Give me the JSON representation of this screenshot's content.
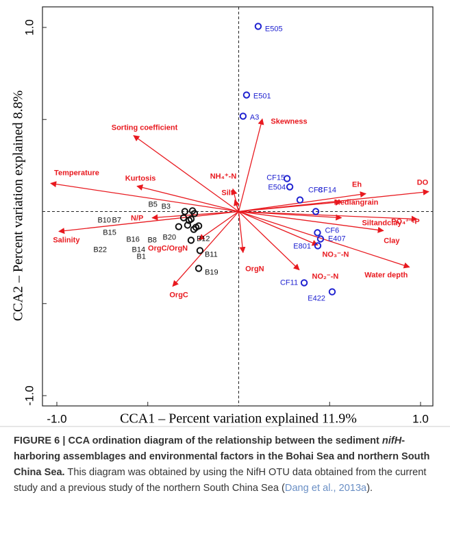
{
  "chart_data": {
    "type": "biplot",
    "xlabel": "CCA1 – Percent variation explained 11.9%",
    "ylabel": "CCA2 – Percent variation explained 8.8%",
    "xlim": [
      -1.0,
      1.0
    ],
    "ylim": [
      -1.0,
      1.0
    ],
    "xticks": [
      {
        "value": -1.0,
        "label": "-1.0"
      },
      {
        "value": 1.0,
        "label": "1.0"
      }
    ],
    "yticks": [
      {
        "value": -1.0,
        "label": "-1.0"
      },
      {
        "value": 1.0,
        "label": "1.0"
      }
    ],
    "minor_xticks": [
      -0.5,
      0.5
    ],
    "minor_yticks": [
      -0.5,
      0.5
    ],
    "site_groups": [
      {
        "color": "#1f22d0",
        "labels": [
          "E505",
          "E501",
          "A3",
          "CF15",
          "E504",
          "CF8",
          "CF14",
          "CF6",
          "E407",
          "E801",
          "CF11",
          "E422"
        ],
        "x": [
          0.107,
          0.043,
          0.024,
          0.266,
          0.281,
          0.337,
          0.424,
          0.433,
          0.45,
          0.435,
          0.36,
          0.514
        ],
        "y": [
          1.006,
          0.633,
          0.518,
          0.179,
          0.134,
          0.063,
          0.0,
          -0.115,
          -0.149,
          -0.186,
          -0.387,
          -0.436
        ]
      },
      {
        "color": "#111111",
        "labels": [
          "B5",
          "B3",
          "B10",
          "B7",
          "B15",
          "B16",
          "B8",
          "B20",
          "B14",
          "B22",
          "B1",
          "B12",
          "B11",
          "B19"
        ],
        "x": [
          -0.296,
          -0.254,
          -0.303,
          -0.273,
          -0.33,
          -0.281,
          -0.247,
          -0.22,
          -0.235,
          -0.262,
          -0.243,
          -0.262,
          -0.213,
          -0.22
        ],
        "y": [
          0.0,
          0.004,
          -0.034,
          -0.048,
          -0.082,
          -0.074,
          -0.097,
          -0.078,
          -0.086,
          -0.041,
          -0.011,
          -0.156,
          -0.212,
          -0.309
        ]
      }
    ],
    "vectors": {
      "color": "#e8191f",
      "labels": [
        "Sorting coefficient",
        "Temperature",
        "Kurtosis",
        "NH₄⁺-N",
        "Silt",
        "Skewness",
        "Eh",
        "DO",
        "Mediangrain",
        "PO₄³⁻-P",
        "Siltandclay",
        "Clay",
        "Water depth",
        "NO₃⁻-N",
        "NO₂⁻-N",
        "OrgN",
        "OrgC",
        "OrgC/OrgN",
        "N/P",
        "Salinity"
      ],
      "x": [
        -0.578,
        -1.034,
        -0.559,
        -0.032,
        -0.021,
        0.13,
        0.699,
        1.045,
        0.563,
        0.981,
        0.565,
        0.796,
        0.939,
        0.435,
        0.333,
        0.024,
        -0.363,
        -0.22,
        -0.476,
        -0.989
      ],
      "y": [
        0.413,
        0.153,
        0.138,
        0.123,
        0.063,
        0.503,
        0.097,
        0.108,
        0.052,
        -0.041,
        -0.034,
        -0.104,
        -0.302,
        -0.182,
        -0.317,
        -0.223,
        -0.406,
        -0.153,
        -0.034,
        -0.108
      ]
    }
  },
  "caption": {
    "bold_1": "FIGURE 6 | CCA ordination diagram of the relationship between the sediment ",
    "italic": "nifH",
    "bold_2": "-harboring assemblages and environmental factors in the Bohai Sea and northern South China Sea.",
    "text": " This diagram was obtained by using the NifH OTU data obtained from the current study and a previous study of the northern South China Sea (",
    "link": "Dang et al., 2013a",
    "tail": ")."
  }
}
